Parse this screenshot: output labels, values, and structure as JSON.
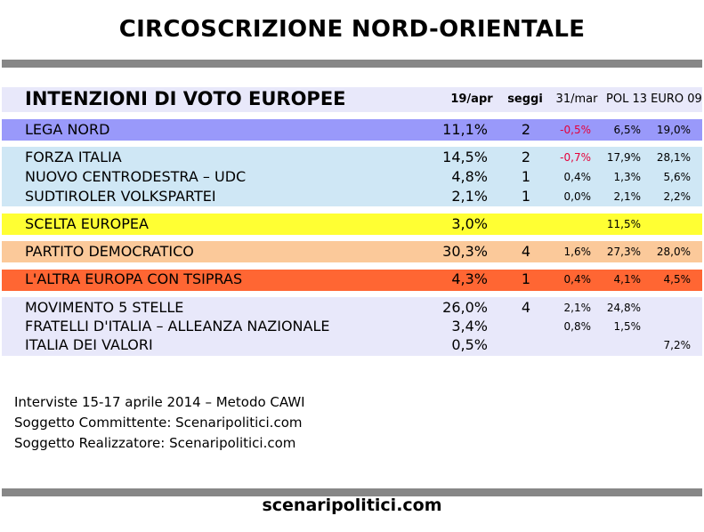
{
  "title": "CIRCOSCRIZIONE NORD-ORIENTALE",
  "table": {
    "heading": "INTENZIONI DI VOTO EUROPEE",
    "columns": {
      "current": "19/apr",
      "seats": "seggi",
      "prev": "31/mar",
      "pol": "POL 13",
      "euro": "EURO 09"
    }
  },
  "colors": {
    "header": "#e8e8fa",
    "lega": "#9999fa",
    "centrodestra": "#cfe7f5",
    "scelta": "#ffff33",
    "pd": "#fbc99a",
    "tsipras": "#ff6633",
    "others": "#e8e8fa"
  },
  "chart_data": {
    "type": "table",
    "groups": [
      {
        "color_key": "lega",
        "rows": [
          {
            "party": "LEGA NORD",
            "pct": "11,1%",
            "seats": "2",
            "diff": "-0,5%",
            "diff_negative": true,
            "pol13": "6,5%",
            "euro09": "19,0%"
          }
        ]
      },
      {
        "color_key": "centrodestra",
        "rows": [
          {
            "party": "FORZA ITALIA",
            "pct": "14,5%",
            "seats": "2",
            "diff": "-0,7%",
            "diff_negative": true,
            "pol13": "17,9%",
            "euro09": "28,1%"
          },
          {
            "party": "NUOVO CENTRODESTRA – UDC",
            "pct": "4,8%",
            "seats": "1",
            "diff": "0,4%",
            "diff_negative": false,
            "pol13": "1,3%",
            "euro09": "5,6%"
          },
          {
            "party": "SUDTIROLER VOLKSPARTEI",
            "pct": "2,1%",
            "seats": "1",
            "diff": "0,0%",
            "diff_negative": false,
            "pol13": "2,1%",
            "euro09": "2,2%"
          }
        ]
      },
      {
        "color_key": "scelta",
        "rows": [
          {
            "party": "SCELTA EUROPEA",
            "pct": "3,0%",
            "seats": "",
            "diff": "",
            "diff_negative": false,
            "pol13": "11,5%",
            "euro09": ""
          }
        ]
      },
      {
        "color_key": "pd",
        "rows": [
          {
            "party": "PARTITO DEMOCRATICO",
            "pct": "30,3%",
            "seats": "4",
            "diff": "1,6%",
            "diff_negative": false,
            "pol13": "27,3%",
            "euro09": "28,0%"
          }
        ]
      },
      {
        "color_key": "tsipras",
        "rows": [
          {
            "party": "L'ALTRA EUROPA CON TSIPRAS",
            "pct": "4,3%",
            "seats": "1",
            "diff": "0,4%",
            "diff_negative": false,
            "pol13": "4,1%",
            "euro09": "4,5%"
          }
        ]
      },
      {
        "color_key": "others",
        "rows": [
          {
            "party": "MOVIMENTO 5 STELLE",
            "pct": "26,0%",
            "seats": "4",
            "diff": "2,1%",
            "diff_negative": false,
            "pol13": "24,8%",
            "euro09": ""
          },
          {
            "party": "FRATELLI D'ITALIA – ALLEANZA NAZIONALE",
            "pct": "3,4%",
            "seats": "",
            "diff": "0,8%",
            "diff_negative": false,
            "pol13": "1,5%",
            "euro09": ""
          },
          {
            "party": "ITALIA DEI VALORI",
            "pct": "0,5%",
            "seats": "",
            "diff": "",
            "diff_negative": false,
            "pol13": "",
            "euro09": "7,2%"
          }
        ]
      }
    ]
  },
  "notes": [
    "Interviste 15-17 aprile 2014 – Metodo CAWI",
    "Soggetto Committente: Scenaripolitici.com",
    "Soggetto Realizzatore: Scenaripolitici.com"
  ],
  "site": "scenaripolitici.com"
}
